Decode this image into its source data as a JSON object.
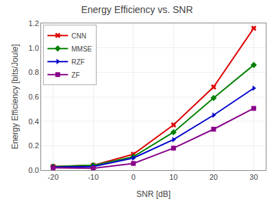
{
  "chart_data": {
    "type": "line",
    "title": "Energy Efficiency vs. SNR",
    "x_label": "SNR [dB]",
    "y_label": "Energy Efficiency [bits/Joule]",
    "x": [
      -20,
      -10,
      0,
      10,
      20,
      30
    ],
    "series": [
      {
        "name": "CNN",
        "color": "#dd0000",
        "marker": "x",
        "values": [
          0.03,
          0.04,
          0.13,
          0.37,
          0.68,
          1.16
        ]
      },
      {
        "name": "MMSE",
        "color": "#008000",
        "marker": "diamond",
        "values": [
          0.03,
          0.04,
          0.11,
          0.31,
          0.59,
          0.86
        ]
      },
      {
        "name": "RZF",
        "color": "#0000cc",
        "marker": "triangle-right",
        "values": [
          0.025,
          0.03,
          0.1,
          0.25,
          0.45,
          0.67
        ]
      },
      {
        "name": "ZF",
        "color": "#880088",
        "marker": "square",
        "values": [
          0.02,
          0.015,
          0.055,
          0.18,
          0.335,
          0.505
        ]
      }
    ],
    "xlim": [
      -23,
      33
    ],
    "ylim": [
      0.0,
      1.2
    ],
    "xticks": [
      -20,
      -10,
      0,
      10,
      20,
      30
    ],
    "yticks": [
      {
        "value": 0,
        "label": "0.0"
      },
      0.2,
      0.4,
      0.6,
      0.8,
      {
        "value": 1,
        "label": "1.0"
      },
      1.2
    ],
    "grid": true,
    "legend": "upper left"
  }
}
